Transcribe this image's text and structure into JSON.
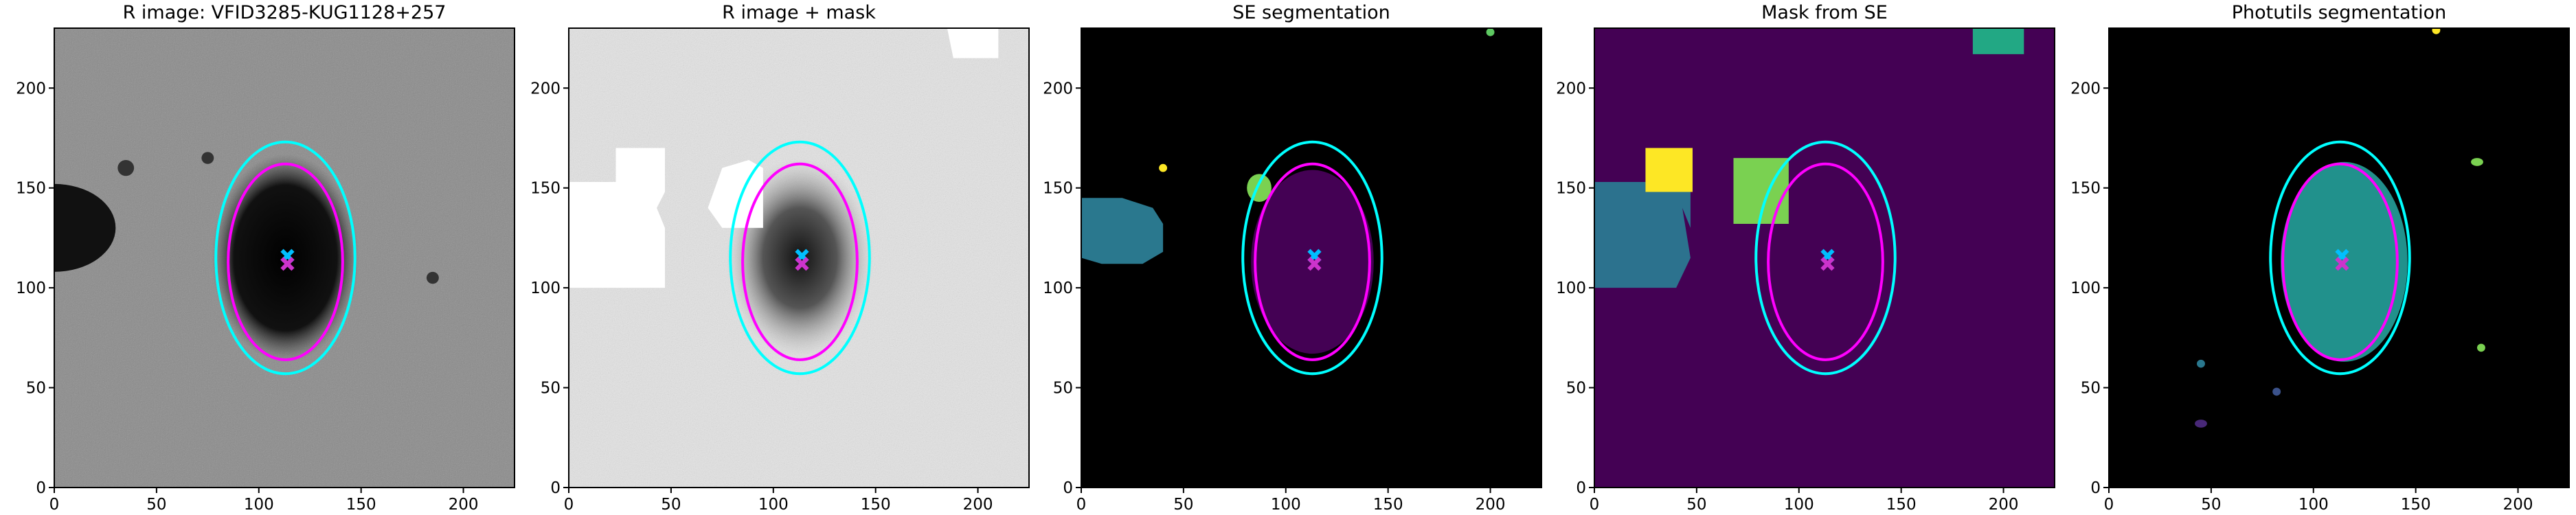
{
  "chart_data": [
    {
      "type": "image",
      "title": "R image: VFID3285-KUG1128+257",
      "background": "#8a8a8a",
      "xlim": [
        0,
        225
      ],
      "ylim": [
        0,
        230
      ],
      "xticks": [
        0,
        50,
        100,
        150,
        200
      ],
      "yticks": [
        0,
        50,
        100,
        150,
        200
      ],
      "ellipses": [
        {
          "cx": 113,
          "cy": 115,
          "rx": 34,
          "ry": 58,
          "color": "#00ffff"
        },
        {
          "cx": 113,
          "cy": 113,
          "rx": 28,
          "ry": 49,
          "color": "#ff00ff"
        }
      ],
      "markers": [
        {
          "x": 114,
          "y": 116,
          "color": "#00bfff"
        },
        {
          "x": 114,
          "y": 112,
          "color": "#cc33cc"
        }
      ]
    },
    {
      "type": "image",
      "title": "R image + mask",
      "background": "#e4e4e4",
      "xlim": [
        0,
        225
      ],
      "ylim": [
        0,
        230
      ],
      "xticks": [
        0,
        50,
        100,
        150,
        200
      ],
      "yticks": [
        0,
        50,
        100,
        150,
        200
      ],
      "ellipses": [
        {
          "cx": 113,
          "cy": 115,
          "rx": 34,
          "ry": 58,
          "color": "#00ffff"
        },
        {
          "cx": 113,
          "cy": 113,
          "rx": 28,
          "ry": 49,
          "color": "#ff00ff"
        }
      ],
      "markers": [
        {
          "x": 114,
          "y": 116,
          "color": "#00bfff"
        },
        {
          "x": 114,
          "y": 112,
          "color": "#cc33cc"
        }
      ]
    },
    {
      "type": "image",
      "title": "SE segmentation",
      "background": "#000000",
      "xlim": [
        0,
        225
      ],
      "ylim": [
        0,
        230
      ],
      "xticks": [
        0,
        50,
        100,
        150,
        200
      ],
      "yticks": [
        0,
        50,
        100,
        150,
        200
      ],
      "ellipses": [
        {
          "cx": 113,
          "cy": 115,
          "rx": 34,
          "ry": 58,
          "color": "#00ffff"
        },
        {
          "cx": 113,
          "cy": 113,
          "rx": 28,
          "ry": 49,
          "color": "#ff00ff"
        }
      ],
      "markers": [
        {
          "x": 114,
          "y": 116,
          "color": "#00bfff"
        },
        {
          "x": 114,
          "y": 112,
          "color": "#cc33cc"
        }
      ]
    },
    {
      "type": "image",
      "title": "Mask from SE",
      "background": "#440154",
      "xlim": [
        0,
        225
      ],
      "ylim": [
        0,
        230
      ],
      "xticks": [
        0,
        50,
        100,
        150,
        200
      ],
      "yticks": [
        0,
        50,
        100,
        150,
        200
      ],
      "ellipses": [
        {
          "cx": 113,
          "cy": 115,
          "rx": 34,
          "ry": 58,
          "color": "#00ffff"
        },
        {
          "cx": 113,
          "cy": 113,
          "rx": 28,
          "ry": 49,
          "color": "#ff00ff"
        }
      ],
      "markers": [
        {
          "x": 114,
          "y": 116,
          "color": "#00bfff"
        },
        {
          "x": 114,
          "y": 112,
          "color": "#cc33cc"
        }
      ]
    },
    {
      "type": "image",
      "title": "Photutils segmentation",
      "background": "#000000",
      "xlim": [
        0,
        225
      ],
      "ylim": [
        0,
        230
      ],
      "xticks": [
        0,
        50,
        100,
        150,
        200
      ],
      "yticks": [
        0,
        50,
        100,
        150,
        200
      ],
      "ellipses": [
        {
          "cx": 113,
          "cy": 115,
          "rx": 34,
          "ry": 58,
          "color": "#00ffff"
        },
        {
          "cx": 113,
          "cy": 113,
          "rx": 28,
          "ry": 49,
          "color": "#ff00ff"
        }
      ],
      "markers": [
        {
          "x": 114,
          "y": 116,
          "color": "#00bfff"
        },
        {
          "x": 114,
          "y": 112,
          "color": "#cc33cc"
        }
      ]
    }
  ]
}
